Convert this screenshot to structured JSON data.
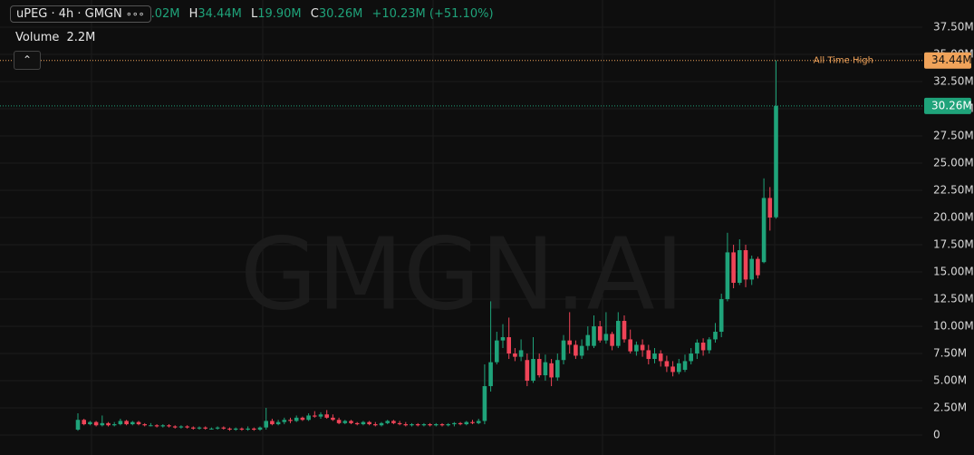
{
  "header": {
    "symbol": "uPEG · 4h · GMGN",
    "menu": "∘∘∘",
    "open_value": ".02M",
    "high_label": "H",
    "high_value": "34.44M",
    "low_label": "L",
    "low_value": "19.90M",
    "close_label": "C",
    "close_value": "30.26M",
    "change": "+10.23M (+51.10%)",
    "volume_label": "Volume",
    "volume_value": "2.2M"
  },
  "chart_data": {
    "type": "candlestick",
    "watermark": "GMGN.AI",
    "up_color": "#1fa37a",
    "down_color": "#ef4458",
    "grid": true,
    "ylim": [
      -1.83,
      40
    ],
    "yticks": [
      0,
      {
        "value": 2.5,
        "label": "2.50M"
      },
      {
        "value": 5,
        "label": "5.00M"
      },
      {
        "value": 7.5,
        "label": "7.50M"
      },
      {
        "value": 10,
        "label": "10.00M"
      },
      {
        "value": 12.5,
        "label": "12.50M"
      },
      {
        "value": 15,
        "label": "15.00M"
      },
      {
        "value": 17.5,
        "label": "17.50M"
      },
      {
        "value": 20,
        "label": "20.00M"
      },
      {
        "value": 22.5,
        "label": "22.50M"
      },
      {
        "value": 25,
        "label": "25.00M"
      },
      {
        "value": 27.5,
        "label": "27.50M"
      },
      {
        "value": 30,
        "label": "30.00M"
      },
      {
        "value": 32.5,
        "label": "32.50M"
      },
      {
        "value": 35,
        "label": "35.00M"
      },
      {
        "value": 37.5,
        "label": "37.50M"
      }
    ],
    "ath": {
      "value": 34.44,
      "label": "34.44M",
      "text": "All Time High",
      "color": "#f0a35a"
    },
    "last": {
      "value": 30.26,
      "label": "30.26M",
      "color": "#1fa37a"
    },
    "ohlc": [
      [
        0.5,
        2.0,
        0.4,
        1.4
      ],
      [
        1.4,
        1.5,
        0.9,
        1.0
      ],
      [
        1.0,
        1.3,
        0.9,
        1.2
      ],
      [
        1.2,
        1.3,
        0.8,
        0.9
      ],
      [
        0.9,
        1.8,
        0.8,
        1.1
      ],
      [
        1.1,
        1.2,
        0.8,
        0.9
      ],
      [
        0.9,
        1.2,
        0.8,
        1.0
      ],
      [
        1.0,
        1.5,
        0.9,
        1.3
      ],
      [
        1.3,
        1.4,
        0.9,
        1.0
      ],
      [
        1.0,
        1.3,
        0.9,
        1.2
      ],
      [
        1.2,
        1.3,
        0.9,
        1.0
      ],
      [
        1.0,
        1.1,
        0.8,
        0.9
      ],
      [
        0.9,
        1.1,
        0.8,
        0.9
      ],
      [
        0.9,
        1.0,
        0.7,
        0.8
      ],
      [
        0.8,
        1.0,
        0.7,
        0.9
      ],
      [
        0.9,
        1.0,
        0.7,
        0.8
      ],
      [
        0.8,
        0.9,
        0.6,
        0.7
      ],
      [
        0.7,
        0.9,
        0.6,
        0.8
      ],
      [
        0.8,
        0.9,
        0.6,
        0.7
      ],
      [
        0.7,
        0.8,
        0.5,
        0.6
      ],
      [
        0.6,
        0.8,
        0.5,
        0.7
      ],
      [
        0.7,
        0.8,
        0.5,
        0.6
      ],
      [
        0.6,
        0.7,
        0.5,
        0.6
      ],
      [
        0.6,
        0.8,
        0.5,
        0.7
      ],
      [
        0.7,
        0.8,
        0.5,
        0.6
      ],
      [
        0.6,
        0.7,
        0.4,
        0.5
      ],
      [
        0.5,
        0.7,
        0.4,
        0.6
      ],
      [
        0.6,
        0.7,
        0.4,
        0.5
      ],
      [
        0.5,
        0.8,
        0.4,
        0.6
      ],
      [
        0.6,
        0.7,
        0.4,
        0.5
      ],
      [
        0.5,
        0.8,
        0.4,
        0.7
      ],
      [
        0.7,
        2.5,
        0.5,
        1.3
      ],
      [
        1.3,
        1.5,
        0.9,
        1.0
      ],
      [
        1.0,
        1.4,
        0.9,
        1.2
      ],
      [
        1.2,
        1.6,
        1.0,
        1.4
      ],
      [
        1.4,
        1.6,
        1.1,
        1.3
      ],
      [
        1.3,
        1.8,
        1.2,
        1.6
      ],
      [
        1.6,
        1.7,
        1.3,
        1.4
      ],
      [
        1.4,
        2.0,
        1.3,
        1.8
      ],
      [
        1.8,
        2.2,
        1.6,
        1.7
      ],
      [
        1.7,
        2.1,
        1.5,
        1.9
      ],
      [
        1.9,
        2.3,
        1.5,
        1.6
      ],
      [
        1.6,
        1.9,
        1.3,
        1.4
      ],
      [
        1.4,
        1.6,
        1.0,
        1.1
      ],
      [
        1.1,
        1.4,
        1.0,
        1.3
      ],
      [
        1.3,
        1.4,
        1.0,
        1.1
      ],
      [
        1.1,
        1.2,
        0.9,
        1.0
      ],
      [
        1.0,
        1.3,
        0.9,
        1.2
      ],
      [
        1.2,
        1.3,
        0.9,
        1.0
      ],
      [
        1.0,
        1.2,
        0.8,
        0.9
      ],
      [
        0.9,
        1.2,
        0.8,
        1.1
      ],
      [
        1.1,
        1.4,
        1.0,
        1.3
      ],
      [
        1.3,
        1.4,
        1.0,
        1.1
      ],
      [
        1.1,
        1.3,
        0.9,
        1.0
      ],
      [
        1.0,
        1.2,
        0.8,
        0.9
      ],
      [
        0.9,
        1.1,
        0.8,
        1.0
      ],
      [
        1.0,
        1.1,
        0.8,
        0.9
      ],
      [
        0.9,
        1.1,
        0.8,
        1.0
      ],
      [
        1.0,
        1.1,
        0.8,
        0.9
      ],
      [
        0.9,
        1.1,
        0.8,
        1.0
      ],
      [
        1.0,
        1.1,
        0.8,
        0.9
      ],
      [
        0.9,
        1.1,
        0.8,
        1.0
      ],
      [
        1.0,
        1.2,
        0.8,
        1.1
      ],
      [
        1.1,
        1.2,
        0.9,
        1.0
      ],
      [
        1.0,
        1.3,
        0.9,
        1.2
      ],
      [
        1.2,
        1.4,
        1.0,
        1.1
      ],
      [
        1.1,
        1.5,
        1.0,
        1.3
      ],
      [
        1.3,
        6.5,
        1.0,
        4.5
      ],
      [
        4.5,
        12.3,
        4.0,
        6.7
      ],
      [
        6.7,
        9.5,
        6.5,
        8.7
      ],
      [
        8.7,
        10.2,
        8.0,
        9.0
      ],
      [
        9.0,
        10.8,
        7.0,
        7.5
      ],
      [
        7.5,
        8.0,
        6.8,
        7.2
      ],
      [
        7.2,
        8.8,
        6.8,
        7.8
      ],
      [
        6.9,
        7.5,
        4.5,
        5.0
      ],
      [
        5.0,
        9.0,
        4.8,
        7.0
      ],
      [
        7.0,
        7.5,
        5.3,
        5.5
      ],
      [
        5.5,
        7.4,
        5.0,
        6.7
      ],
      [
        6.6,
        7.0,
        4.5,
        5.3
      ],
      [
        5.3,
        7.5,
        5.0,
        6.9
      ],
      [
        6.9,
        9.2,
        6.5,
        8.7
      ],
      [
        8.7,
        11.3,
        7.5,
        8.3
      ],
      [
        8.3,
        8.7,
        7.0,
        7.3
      ],
      [
        7.3,
        8.8,
        7.0,
        8.2
      ],
      [
        8.2,
        10.0,
        7.8,
        9.2
      ],
      [
        8.2,
        11.0,
        8.0,
        10.0
      ],
      [
        10.0,
        10.5,
        8.5,
        8.7
      ],
      [
        8.7,
        11.3,
        8.4,
        9.3
      ],
      [
        9.3,
        9.5,
        7.8,
        8.2
      ],
      [
        8.2,
        11.3,
        8.0,
        10.5
      ],
      [
        10.5,
        11.0,
        8.5,
        8.8
      ],
      [
        8.8,
        9.7,
        7.5,
        7.7
      ],
      [
        7.7,
        8.6,
        7.3,
        8.3
      ],
      [
        8.3,
        8.8,
        7.2,
        7.8
      ],
      [
        7.8,
        8.3,
        6.5,
        7.0
      ],
      [
        7.0,
        8.0,
        6.6,
        7.5
      ],
      [
        7.5,
        7.8,
        6.3,
        6.8
      ],
      [
        6.8,
        7.3,
        5.8,
        6.3
      ],
      [
        6.3,
        6.8,
        5.4,
        5.8
      ],
      [
        5.8,
        7.0,
        5.6,
        6.6
      ],
      [
        6.0,
        7.4,
        5.8,
        6.8
      ],
      [
        6.8,
        8.0,
        6.5,
        7.5
      ],
      [
        7.5,
        8.8,
        7.0,
        8.5
      ],
      [
        8.5,
        8.9,
        7.3,
        7.8
      ],
      [
        7.8,
        9.0,
        7.5,
        8.8
      ],
      [
        8.8,
        10.3,
        8.5,
        9.5
      ],
      [
        9.5,
        13.0,
        9.0,
        12.5
      ],
      [
        12.5,
        18.6,
        12.3,
        16.8
      ],
      [
        16.8,
        17.5,
        13.5,
        14.0
      ],
      [
        14.0,
        18.0,
        13.8,
        17.0
      ],
      [
        17.0,
        17.5,
        13.6,
        14.3
      ],
      [
        14.3,
        16.5,
        13.8,
        16.2
      ],
      [
        16.2,
        16.4,
        14.4,
        14.7
      ],
      [
        15.9,
        23.6,
        15.8,
        21.8
      ],
      [
        21.8,
        22.8,
        18.8,
        20.0
      ],
      [
        20.03,
        34.44,
        19.9,
        30.26
      ]
    ]
  }
}
